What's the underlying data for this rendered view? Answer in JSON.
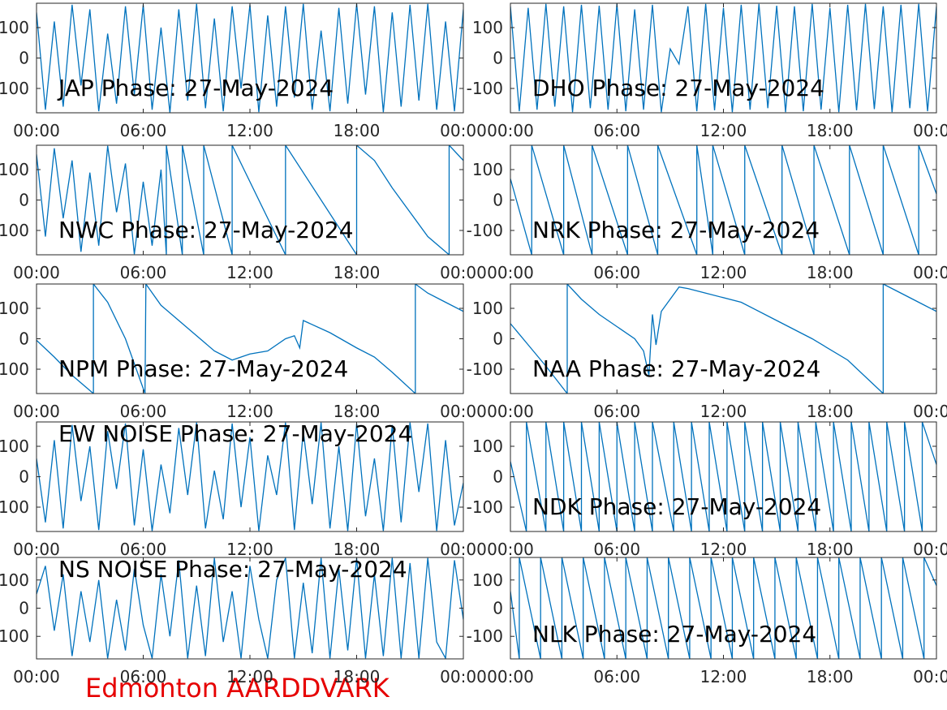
{
  "figure_title": "Edmonton AARDDVARK",
  "chart_data": [
    {
      "type": "line",
      "title": "JAP Phase: 27-May-2024",
      "color": "#0072bd",
      "x": [
        0,
        0.5,
        1,
        1.5,
        2,
        2.5,
        3,
        3.5,
        4,
        4.5,
        5,
        5.5,
        6,
        6.5,
        7,
        7.5,
        8,
        8.5,
        9,
        9.5,
        10,
        10.5,
        11,
        11.5,
        12,
        12.5,
        13,
        13.5,
        14,
        14.5,
        15,
        15.5,
        16,
        16.5,
        17,
        17.5,
        18,
        18.5,
        19,
        19.5,
        20,
        20.5,
        21,
        21.5,
        22,
        22.5,
        23,
        23.5,
        24
      ],
      "values": [
        150,
        -170,
        120,
        -160,
        175,
        -90,
        160,
        -175,
        80,
        -150,
        170,
        -120,
        175,
        -170,
        100,
        -180,
        160,
        -140,
        178,
        -165,
        130,
        -175,
        170,
        -100,
        175,
        -178,
        140,
        -160,
        170,
        -130,
        178,
        -170,
        90,
        -175,
        165,
        -150,
        178,
        -120,
        170,
        -178,
        150,
        -160,
        175,
        -140,
        178,
        -170,
        120,
        -175,
        160
      ],
      "xlim": [
        0,
        24
      ],
      "xticks": [
        {
          "value": 0,
          "label": "00:00"
        },
        {
          "value": 6,
          "label": "06:00"
        },
        {
          "value": 12,
          "label": "12:00"
        },
        {
          "value": 18,
          "label": "18:00"
        },
        {
          "value": 24,
          "label": "00:00"
        }
      ],
      "ylim": [
        -180,
        180
      ],
      "yticks": [
        -100,
        0,
        100
      ]
    },
    {
      "type": "line",
      "title": "DHO Phase: 27-May-2024",
      "color": "#0072bd",
      "x": [
        0,
        0.5,
        1,
        1.5,
        2,
        2.5,
        3,
        3.5,
        4,
        4.5,
        5,
        5.5,
        6,
        6.5,
        7,
        7.5,
        8,
        8.5,
        9,
        9.5,
        10,
        10.5,
        11,
        11.5,
        12,
        12.5,
        13,
        13.5,
        14,
        14.5,
        15,
        15.5,
        16,
        16.5,
        17,
        17.5,
        18,
        18.5,
        19,
        19.5,
        20,
        20.5,
        21,
        21.5,
        22,
        22.5,
        23,
        23.5,
        24
      ],
      "values": [
        170,
        -175,
        165,
        -170,
        178,
        -160,
        170,
        -178,
        175,
        -165,
        172,
        -170,
        178,
        -175,
        160,
        -170,
        175,
        -178,
        30,
        -20,
        170,
        -175,
        178,
        -172,
        165,
        -178,
        175,
        -170,
        178,
        -165,
        172,
        -178,
        170,
        -175,
        178,
        -170,
        165,
        -178,
        175,
        -172,
        178,
        -168,
        170,
        -178,
        175,
        -165,
        178,
        -175,
        170
      ],
      "xlim": [
        0,
        24
      ],
      "xticks": [
        {
          "value": 0,
          "label": "00:00"
        },
        {
          "value": 6,
          "label": "06:00"
        },
        {
          "value": 12,
          "label": "12:00"
        },
        {
          "value": 18,
          "label": "18:00"
        },
        {
          "value": 24,
          "label": "00:00"
        }
      ],
      "ylim": [
        -180,
        180
      ],
      "yticks": [
        -100,
        0,
        100
      ]
    },
    {
      "type": "line",
      "title": "NWC Phase: 27-May-2024",
      "color": "#0072bd",
      "x": [
        0,
        0.5,
        1,
        1.5,
        2,
        2.5,
        3,
        3.5,
        4,
        4.5,
        5,
        5.5,
        6,
        6.5,
        7,
        7.3,
        7.3,
        8.2,
        8.2,
        9.4,
        9.4,
        11,
        11,
        14,
        14,
        18,
        18,
        19,
        20,
        21,
        22,
        23.2,
        23.2,
        24
      ],
      "values": [
        150,
        -120,
        170,
        -60,
        130,
        -170,
        90,
        -150,
        178,
        -40,
        120,
        -178,
        60,
        -150,
        100,
        -180,
        180,
        -180,
        180,
        -180,
        180,
        -180,
        180,
        -180,
        180,
        -180,
        180,
        130,
        40,
        -40,
        -120,
        -180,
        180,
        130
      ],
      "xlim": [
        0,
        24
      ],
      "xticks": [
        {
          "value": 0,
          "label": "00:00"
        },
        {
          "value": 6,
          "label": "06:00"
        },
        {
          "value": 12,
          "label": "12:00"
        },
        {
          "value": 18,
          "label": "18:00"
        },
        {
          "value": 24,
          "label": "00:00"
        }
      ],
      "ylim": [
        -180,
        180
      ],
      "yticks": [
        -100,
        0,
        100
      ]
    },
    {
      "type": "line",
      "title": "NRK Phase: 27-May-2024",
      "color": "#0072bd",
      "x": [
        0,
        1.2,
        1.2,
        3,
        3,
        4.6,
        4.6,
        6.6,
        6.6,
        8.3,
        8.3,
        10.5,
        10.5,
        11.4,
        11.4,
        13.2,
        13.2,
        15.3,
        15.3,
        17.1,
        17.1,
        19.1,
        19.1,
        21,
        21,
        23,
        23,
        24
      ],
      "values": [
        70,
        -180,
        180,
        -180,
        180,
        -180,
        180,
        -180,
        180,
        -180,
        180,
        -180,
        180,
        -180,
        180,
        -180,
        180,
        -180,
        180,
        -180,
        180,
        -180,
        180,
        -180,
        180,
        -180,
        180,
        20
      ],
      "xlim": [
        0,
        24
      ],
      "xticks": [
        {
          "value": 0,
          "label": "00:00"
        },
        {
          "value": 6,
          "label": "06:00"
        },
        {
          "value": 12,
          "label": "12:00"
        },
        {
          "value": 18,
          "label": "18:00"
        },
        {
          "value": 24,
          "label": "00:00"
        }
      ],
      "ylim": [
        -180,
        180
      ],
      "yticks": [
        -100,
        0,
        100
      ]
    },
    {
      "type": "line",
      "title": "NPM Phase: 27-May-2024",
      "color": "#0072bd",
      "x": [
        0,
        1,
        2,
        3.2,
        3.2,
        4,
        5,
        6.1,
        6.15,
        7,
        8,
        9,
        10,
        11,
        11.5,
        12,
        13,
        14,
        14.5,
        14.8,
        15,
        16.5,
        18,
        19,
        20,
        21.3,
        21.3,
        22,
        23,
        24
      ],
      "values": [
        -5,
        -60,
        -120,
        -180,
        180,
        120,
        0,
        -180,
        180,
        110,
        60,
        10,
        -40,
        -70,
        -60,
        -50,
        -40,
        0,
        10,
        -30,
        60,
        20,
        -30,
        -60,
        -110,
        -180,
        180,
        150,
        120,
        90
      ],
      "xlim": [
        0,
        24
      ],
      "xticks": [
        {
          "value": 0,
          "label": "00:00"
        },
        {
          "value": 6,
          "label": "06:00"
        },
        {
          "value": 12,
          "label": "12:00"
        },
        {
          "value": 18,
          "label": "18:00"
        },
        {
          "value": 24,
          "label": "00:00"
        }
      ],
      "ylim": [
        -180,
        180
      ],
      "yticks": [
        -100,
        0,
        100
      ]
    },
    {
      "type": "line",
      "title": "NAA Phase: 27-May-2024",
      "color": "#0072bd",
      "x": [
        0,
        1,
        2,
        3.2,
        3.2,
        4,
        5,
        6,
        7,
        7.5,
        7.8,
        8,
        8.2,
        8.5,
        9,
        9.5,
        10,
        11,
        13,
        15,
        17,
        19,
        21,
        21,
        22,
        23,
        24
      ],
      "values": [
        50,
        -20,
        -90,
        -180,
        180,
        130,
        80,
        40,
        0,
        -40,
        -120,
        80,
        -20,
        90,
        130,
        170,
        165,
        150,
        120,
        60,
        0,
        -70,
        -180,
        180,
        150,
        120,
        90
      ],
      "xlim": [
        0,
        24
      ],
      "xticks": [
        {
          "value": 0,
          "label": "00:00"
        },
        {
          "value": 6,
          "label": "06:00"
        },
        {
          "value": 12,
          "label": "12:00"
        },
        {
          "value": 18,
          "label": "18:00"
        },
        {
          "value": 24,
          "label": "00:00"
        }
      ],
      "ylim": [
        -180,
        180
      ],
      "yticks": [
        -100,
        0,
        100
      ]
    },
    {
      "type": "line",
      "title": "EW NOISE Phase: 27-May-2024",
      "color": "#0072bd",
      "x": [
        0,
        0.5,
        1,
        1.5,
        2,
        2.5,
        3,
        3.5,
        4,
        4.5,
        5,
        5.5,
        6,
        6.5,
        7,
        7.5,
        8,
        8.5,
        9,
        9.5,
        10,
        10.5,
        11,
        11.5,
        12,
        12.5,
        13,
        13.5,
        14,
        14.5,
        15,
        15.5,
        16,
        16.5,
        17,
        17.5,
        18,
        18.5,
        19,
        19.5,
        20,
        20.5,
        21,
        21.5,
        22,
        22.5,
        23,
        23.5,
        24
      ],
      "values": [
        60,
        -150,
        120,
        -170,
        170,
        -80,
        100,
        -175,
        150,
        -40,
        175,
        -160,
        90,
        -178,
        40,
        -120,
        160,
        -60,
        178,
        -170,
        20,
        -140,
        175,
        -100,
        130,
        -178,
        70,
        -60,
        178,
        -175,
        150,
        -90,
        178,
        -170,
        100,
        -178,
        175,
        -130,
        60,
        -178,
        170,
        -150,
        178,
        -50,
        175,
        -178,
        120,
        -160,
        -20
      ],
      "xlim": [
        0,
        24
      ],
      "xticks": [
        {
          "value": 0,
          "label": "00:00"
        },
        {
          "value": 6,
          "label": "06:00"
        },
        {
          "value": 12,
          "label": "12:00"
        },
        {
          "value": 18,
          "label": "18:00"
        },
        {
          "value": 24,
          "label": "00:00"
        }
      ],
      "ylim": [
        -180,
        180
      ],
      "yticks": [
        -100,
        0,
        100
      ]
    },
    {
      "type": "line",
      "title": "NDK Phase: 27-May-2024",
      "color": "#0072bd",
      "x": [
        0,
        0.9,
        0.9,
        2,
        2,
        3,
        3,
        4,
        4,
        5,
        5,
        6,
        6,
        7,
        7,
        8,
        8,
        9.2,
        9.2,
        10.2,
        10.2,
        11.2,
        11.2,
        12.2,
        12.2,
        13.2,
        13.2,
        14.2,
        14.2,
        15.2,
        15.2,
        16.2,
        16.2,
        17.2,
        17.2,
        18.2,
        18.2,
        19.2,
        19.2,
        20.2,
        20.2,
        21.2,
        21.2,
        22.2,
        22.2,
        23.2,
        23.2,
        24
      ],
      "values": [
        50,
        -180,
        180,
        -180,
        180,
        -180,
        180,
        -180,
        180,
        -180,
        180,
        -180,
        180,
        -180,
        180,
        -180,
        180,
        -180,
        180,
        -180,
        180,
        -180,
        180,
        -180,
        180,
        -180,
        180,
        -180,
        180,
        -180,
        180,
        -180,
        180,
        -180,
        180,
        -180,
        180,
        -180,
        180,
        -180,
        180,
        -180,
        180,
        -180,
        180,
        -180,
        180,
        40
      ],
      "xlim": [
        0,
        24
      ],
      "xticks": [
        {
          "value": 0,
          "label": "00:00"
        },
        {
          "value": 6,
          "label": "06:00"
        },
        {
          "value": 12,
          "label": "12:00"
        },
        {
          "value": 18,
          "label": "18:00"
        },
        {
          "value": 24,
          "label": "00:00"
        }
      ],
      "ylim": [
        -180,
        180
      ],
      "yticks": [
        -100,
        0,
        100
      ]
    },
    {
      "type": "line",
      "title": "NS NOISE Phase: 27-May-2024",
      "color": "#0072bd",
      "x": [
        0,
        0.5,
        1,
        1.5,
        2,
        2.5,
        3,
        3.5,
        4,
        4.5,
        5,
        5.5,
        6,
        6.5,
        7,
        7.5,
        8,
        8.5,
        9,
        9.5,
        10,
        10.5,
        11,
        11.5,
        12,
        12.5,
        13,
        13.5,
        14,
        14.5,
        15,
        15.5,
        16,
        16.5,
        17,
        17.5,
        18,
        18.5,
        19,
        19.5,
        20,
        20.5,
        21,
        21.5,
        22,
        22.5,
        23,
        23.5,
        24
      ],
      "values": [
        50,
        150,
        -80,
        120,
        -170,
        60,
        -120,
        100,
        -178,
        30,
        -150,
        140,
        -60,
        -178,
        120,
        -100,
        170,
        -178,
        80,
        -170,
        178,
        -120,
        60,
        -178,
        150,
        -40,
        -178,
        100,
        178,
        -178,
        90,
        -160,
        178,
        -178,
        140,
        -150,
        178,
        -178,
        120,
        -170,
        178,
        -178,
        160,
        -178,
        178,
        -120,
        -178,
        170,
        -40
      ],
      "xlim": [
        0,
        24
      ],
      "xticks": [
        {
          "value": 0,
          "label": "00:00"
        },
        {
          "value": 6,
          "label": "06:00"
        },
        {
          "value": 12,
          "label": "12:00"
        },
        {
          "value": 18,
          "label": "18:00"
        },
        {
          "value": 24,
          "label": "00:00"
        }
      ],
      "ylim": [
        -180,
        180
      ],
      "yticks": [
        -100,
        0,
        100
      ]
    },
    {
      "type": "line",
      "title": "NLK Phase: 27-May-2024",
      "color": "#0072bd",
      "x": [
        0,
        0.5,
        0.5,
        1.7,
        1.7,
        2.9,
        2.9,
        4.1,
        4.1,
        5.3,
        5.3,
        6.5,
        6.5,
        7.7,
        7.7,
        8.9,
        8.9,
        10.1,
        10.1,
        11.3,
        11.3,
        12.5,
        12.5,
        13.7,
        13.7,
        14.9,
        14.9,
        16.1,
        16.1,
        17.3,
        17.3,
        18.5,
        18.5,
        19.7,
        19.7,
        20.9,
        20.9,
        22.1,
        22.1,
        23.3,
        23.3,
        24
      ],
      "values": [
        60,
        -180,
        180,
        -180,
        180,
        -180,
        180,
        -180,
        180,
        -180,
        180,
        -180,
        180,
        -180,
        180,
        -180,
        180,
        -180,
        180,
        -180,
        180,
        -180,
        180,
        -180,
        180,
        -180,
        180,
        -180,
        180,
        -180,
        180,
        -180,
        180,
        -180,
        180,
        -180,
        180,
        -180,
        180,
        -180,
        180,
        80
      ],
      "xlim": [
        0,
        24
      ],
      "xticks": [
        {
          "value": 0,
          "label": "00:00"
        },
        {
          "value": 6,
          "label": "06:00"
        },
        {
          "value": 12,
          "label": "12:00"
        },
        {
          "value": 18,
          "label": "18:00"
        },
        {
          "value": 24,
          "label": "00:00"
        }
      ],
      "ylim": [
        -180,
        180
      ],
      "yticks": [
        -100,
        0,
        100
      ]
    }
  ]
}
